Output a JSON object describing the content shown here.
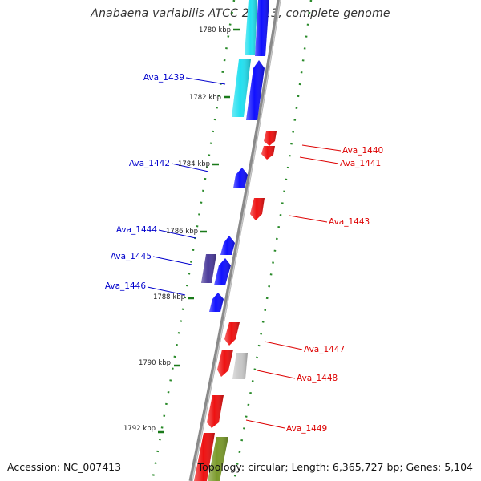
{
  "title": "Anabaena variabilis ATCC 29413, complete genome",
  "footer": {
    "accession": "Accession: NC_007413",
    "summary": "Topology: circular; Length: 6,365,727 bp; Genes: 5,104"
  },
  "colors": {
    "background": "#ffffff",
    "backbone": "#8a8a8a",
    "forward_label": "#0000cc",
    "reverse_label": "#dd0000",
    "kbp_tick": "#1a7a1a",
    "kbp_text": "#222222"
  },
  "kbp_markers": [
    {
      "label": "1780 kbp"
    },
    {
      "label": "1782 kbp"
    },
    {
      "label": "1784 kbp"
    },
    {
      "label": "1786 kbp"
    },
    {
      "label": "1788 kbp"
    },
    {
      "label": "1790 kbp"
    },
    {
      "label": "1792 kbp"
    }
  ],
  "gene_labels": [
    {
      "text": "Ava_1439",
      "strand": "forward"
    },
    {
      "text": "Ava_1440",
      "strand": "reverse"
    },
    {
      "text": "Ava_1441",
      "strand": "reverse"
    },
    {
      "text": "Ava_1442",
      "strand": "forward"
    },
    {
      "text": "Ava_1443",
      "strand": "reverse"
    },
    {
      "text": "Ava_1444",
      "strand": "forward"
    },
    {
      "text": "Ava_1445",
      "strand": "forward"
    },
    {
      "text": "Ava_1446",
      "strand": "forward"
    },
    {
      "text": "Ava_1447",
      "strand": "reverse"
    },
    {
      "text": "Ava_1448",
      "strand": "reverse"
    },
    {
      "text": "Ava_1449",
      "strand": "reverse"
    }
  ],
  "features": [
    {
      "name": "gene-top-cyan",
      "color": "#22e0f0"
    },
    {
      "name": "gene-top-blue",
      "color": "#1010ff"
    },
    {
      "name": "gene-ava-1439-cyan",
      "color": "#22e0f0"
    },
    {
      "name": "gene-ava-1439-blue",
      "color": "#1010ff"
    },
    {
      "name": "gene-ava-1440",
      "color": "#ee1111"
    },
    {
      "name": "gene-ava-1441",
      "color": "#ee1111"
    },
    {
      "name": "gene-ava-1442",
      "color": "#1010ff"
    },
    {
      "name": "gene-ava-1443",
      "color": "#ee1111"
    },
    {
      "name": "gene-ava-1444",
      "color": "#1010ff"
    },
    {
      "name": "gene-ava-1445-purple",
      "color": "#4a3a9a"
    },
    {
      "name": "gene-ava-1445",
      "color": "#1010ff"
    },
    {
      "name": "gene-ava-1446",
      "color": "#1010ff"
    },
    {
      "name": "gene-ava-1447",
      "color": "#ee1111"
    },
    {
      "name": "gene-ava-1448-red",
      "color": "#ee1111"
    },
    {
      "name": "gene-ava-1448-gray",
      "color": "#c8c8c8"
    },
    {
      "name": "gene-ava-1449",
      "color": "#ee1111"
    },
    {
      "name": "gene-bottom-red",
      "color": "#ee1111"
    },
    {
      "name": "gene-bottom-green",
      "color": "#7a9a2a"
    }
  ]
}
